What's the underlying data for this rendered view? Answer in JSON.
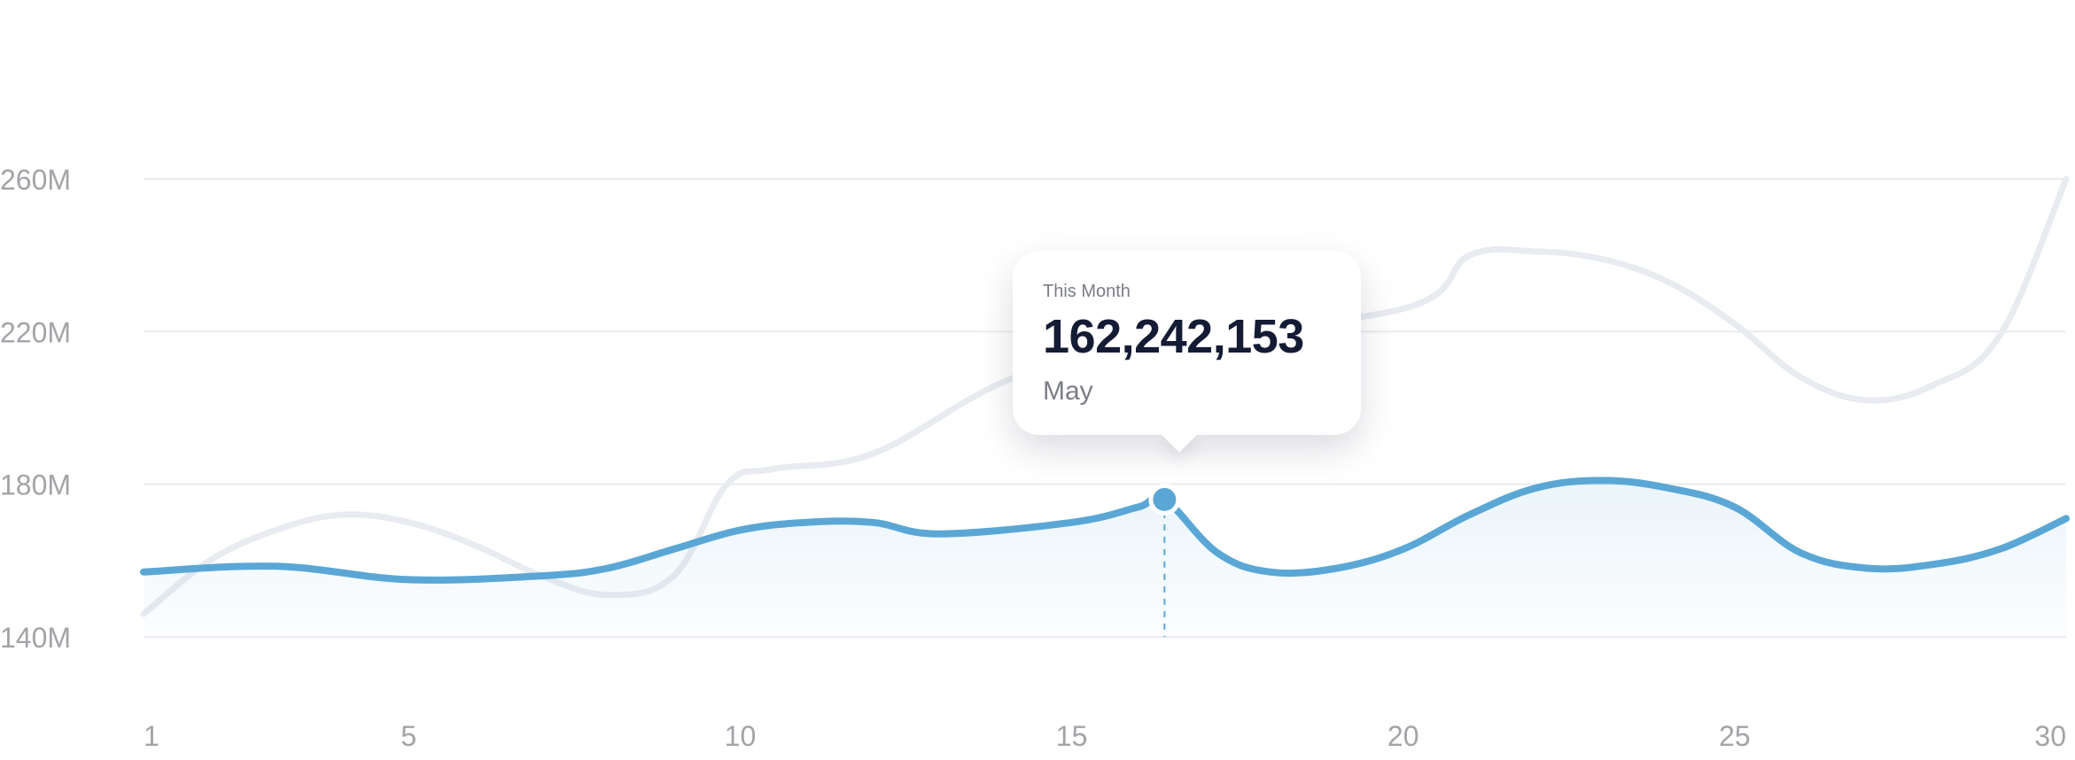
{
  "chart_data": {
    "type": "line",
    "title": "",
    "xlabel": "",
    "ylabel": "",
    "x_ticks": [
      1,
      5,
      10,
      15,
      20,
      25,
      30
    ],
    "y_ticks": [
      "140M",
      "180M",
      "220M",
      "260M"
    ],
    "y_tick_values": [
      140,
      180,
      220,
      260
    ],
    "xlim": [
      1,
      30
    ],
    "ylim": [
      140,
      260
    ],
    "grid": true,
    "series": [
      {
        "style": "muted",
        "color": "#e8ebf0",
        "x": [
          1,
          2,
          3,
          4,
          5,
          6,
          7,
          8,
          9,
          9.8,
          10.5,
          12,
          14,
          16,
          20,
          21,
          22,
          23,
          24,
          25,
          26,
          27,
          28,
          29,
          30
        ],
        "y": [
          146,
          160,
          168,
          172,
          170,
          164,
          156,
          151,
          156,
          180,
          184,
          188,
          207,
          217,
          226,
          240,
          241,
          239,
          233,
          222,
          208,
          202,
          206,
          219,
          260
        ]
      },
      {
        "style": "primary",
        "color": "#5aa7d6",
        "fill": true,
        "x": [
          1,
          3,
          5,
          7,
          8,
          9,
          10,
          11,
          12,
          13,
          15,
          16,
          16.4,
          17.2,
          18,
          19,
          20,
          21,
          22,
          23,
          24,
          25,
          26,
          27,
          28,
          29,
          30
        ],
        "y": [
          157,
          158.5,
          155,
          156,
          158,
          163,
          168,
          170,
          170,
          167,
          170,
          174,
          176,
          162,
          157,
          158,
          163,
          172,
          179,
          181,
          179,
          174,
          162,
          158,
          159,
          163,
          171
        ]
      }
    ],
    "highlight": {
      "x": 16.4,
      "y": 176,
      "series": "primary"
    }
  },
  "tooltip": {
    "label": "This Month",
    "value": "162,242,153",
    "sub": "May"
  }
}
